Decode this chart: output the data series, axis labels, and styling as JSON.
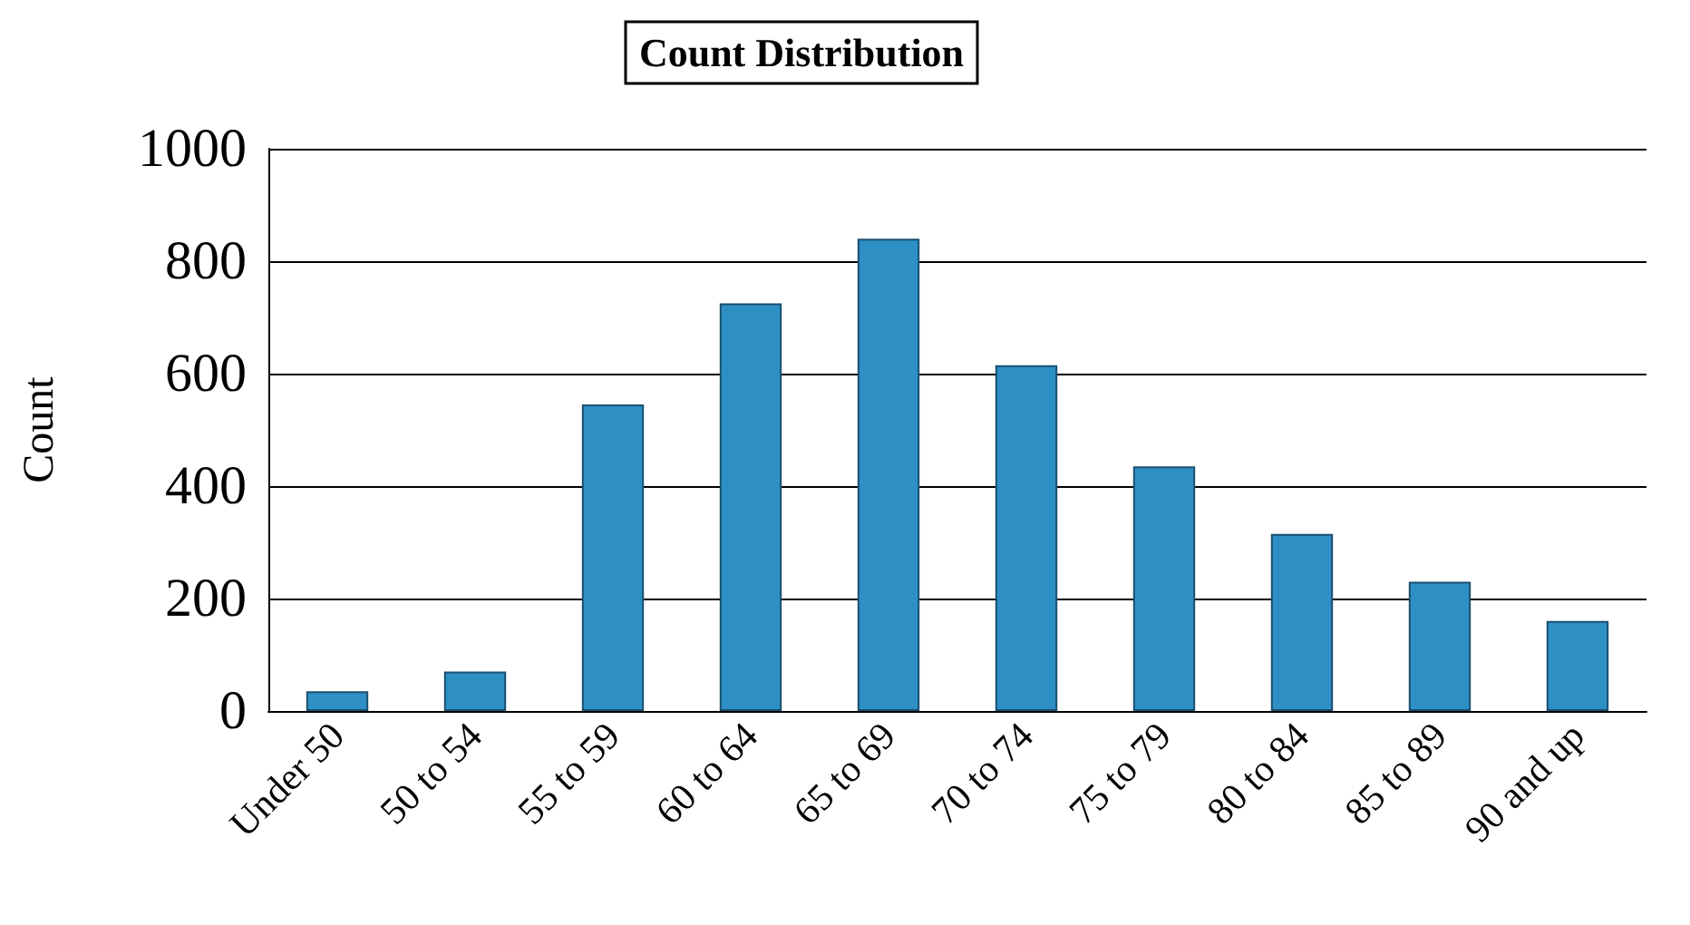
{
  "chart_data": {
    "type": "bar",
    "title": "Count Distribution",
    "ylabel": "Count",
    "categories": [
      "Under 50",
      "50 to 54",
      "55 to 59",
      "60 to 64",
      "65 to 69",
      "70 to 74",
      "75 to 79",
      "80 to 84",
      "85 to 89",
      "90 and up"
    ],
    "values": [
      35,
      70,
      545,
      725,
      840,
      615,
      435,
      315,
      230,
      160
    ],
    "color": "#2e8fc4",
    "ylim": [
      0,
      1000
    ],
    "yticks": [
      0,
      200,
      400,
      600,
      800,
      1000
    ],
    "grid": "y"
  }
}
